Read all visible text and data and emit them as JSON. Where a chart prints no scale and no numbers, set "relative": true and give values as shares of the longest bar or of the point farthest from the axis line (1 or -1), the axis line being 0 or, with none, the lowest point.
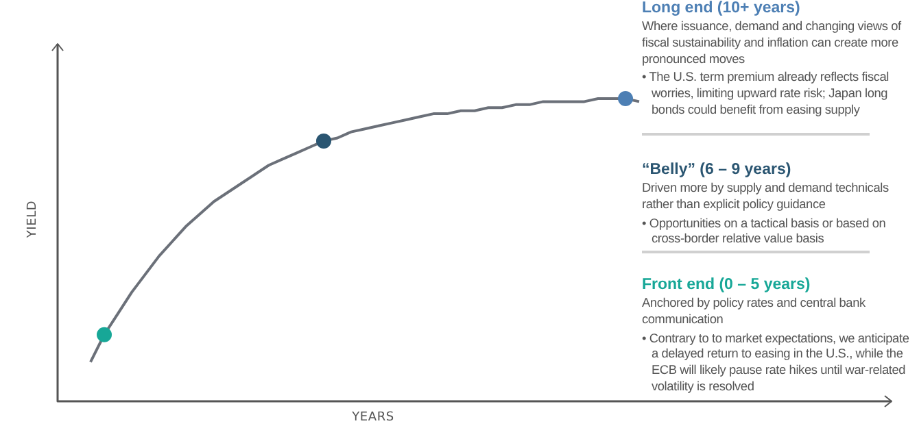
{
  "chart_data": {
    "type": "line",
    "relative": true,
    "xlabel": "YEARS",
    "ylabel": "YIELD",
    "categories": [
      null,
      null,
      null,
      null,
      null,
      null,
      null,
      null,
      null,
      null,
      null,
      null,
      null,
      null,
      null,
      null,
      null,
      null,
      null,
      null,
      null,
      null,
      null,
      null,
      null,
      null,
      null,
      null,
      null,
      null,
      null,
      null,
      null,
      null,
      null,
      null,
      null,
      null,
      null,
      null,
      null
    ],
    "series": [
      {
        "color": "#6b7079",
        "colors": [
          null,
          "#17a797",
          null,
          null,
          null,
          null,
          null,
          null,
          null,
          null,
          null,
          null,
          null,
          null,
          null,
          null,
          null,
          "#2a5571",
          null,
          null,
          null,
          null,
          null,
          null,
          null,
          null,
          null,
          null,
          null,
          null,
          null,
          null,
          null,
          null,
          null,
          null,
          null,
          null,
          null,
          "#4d7fb4",
          null
        ],
        "values": [
          0.13,
          0.22,
          0.29,
          0.36,
          0.42,
          0.48,
          0.53,
          0.58,
          0.62,
          0.66,
          0.69,
          0.72,
          0.75,
          0.78,
          0.8,
          0.82,
          0.84,
          0.86,
          0.87,
          0.89,
          0.9,
          0.91,
          0.92,
          0.93,
          0.94,
          0.95,
          0.95,
          0.96,
          0.96,
          0.97,
          0.97,
          0.98,
          0.98,
          0.99,
          0.99,
          0.99,
          0.99,
          1,
          1,
          1,
          0.99
        ]
      }
    ],
    "annotations": [
      "Long end (10+ years)",
      "Where issuance, demand and changing views of fiscal sustainability and inflation can create more pronounced moves",
      "• The U.S. term premium already reflects fiscal worries, limiting upward rate risk; Japan long bonds could benefit from easing supply",
      "“Belly” (6 – 9 years)",
      "Driven more by supply and demand technicals rather than explicit policy guidance",
      "• Opportunities on a tactical basis or based on cross-border relative value basis",
      "Front end (0 – 5 years)",
      "Anchored by policy rates and central bank communication",
      "• Contrary to to market expectations, we anticipate a delayed return to easing in the U.S., while the ECB will likely pause rate hikes until war-related volatility is resolved"
    ]
  }
}
